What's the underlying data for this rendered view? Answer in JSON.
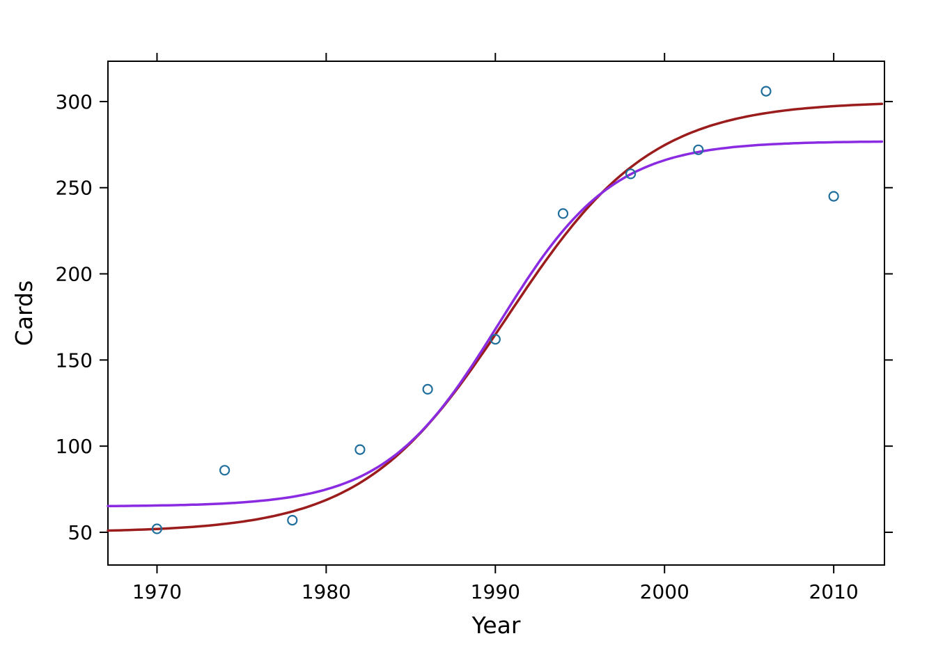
{
  "figure": {
    "background": "#ffffff",
    "frame_color": "#000000"
  },
  "chart_data": {
    "type": "scatter",
    "title": "",
    "xlabel": "Year",
    "ylabel": "Cards",
    "xlim": [
      1967.1,
      2013.0
    ],
    "ylim": [
      31.0,
      323.4
    ],
    "x_ticks": [
      "1970",
      "1980",
      "1990",
      "2000",
      "2010"
    ],
    "x_tick_values": [
      1970,
      1980,
      1990,
      2000,
      2010
    ],
    "y_ticks": [
      "50",
      "100",
      "150",
      "200",
      "250",
      "300"
    ],
    "y_tick_values": [
      50,
      100,
      150,
      200,
      250,
      300
    ],
    "grid": false,
    "legend": "none",
    "points": {
      "name": "observed-cards",
      "marker": "open-circle",
      "color": "#1f6e9c",
      "x": [
        1970,
        1974,
        1978,
        1982,
        1986,
        1990,
        1994,
        1998,
        2002,
        2006,
        2010
      ],
      "y": [
        52,
        86,
        57,
        98,
        133,
        162,
        235,
        258,
        272,
        306,
        245
      ]
    },
    "curves": [
      {
        "name": "logistic-fit-dark-red",
        "model": "logistic",
        "color": "#9b1c1c",
        "asym_low": 50,
        "asym_high": 300,
        "midpoint": 1990.7,
        "scale": 4.26
      },
      {
        "name": "logistic-fit-purple",
        "model": "logistic",
        "color": "#8a2be2",
        "asym_low": 65,
        "asym_high": 277,
        "midpoint": 1990.2,
        "scale": 3.38
      }
    ]
  }
}
